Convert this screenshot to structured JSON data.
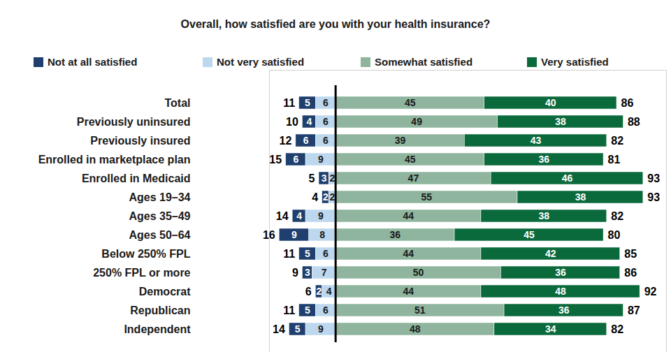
{
  "chart_data": {
    "type": "bar",
    "title": "Overall, how satisfied are you with your health insurance?",
    "orientation": "horizontal",
    "stacked": true,
    "data_labels": true,
    "tick_labels": "y",
    "grid": false,
    "legend": "top",
    "categories": [
      "Total",
      "Previously uninsured",
      "Previously insured",
      "Enrolled in marketplace plan",
      "Enrolled in Medicaid",
      "Ages 19–34",
      "Ages 35–49",
      "Ages 50–64",
      "Below 250% FPL",
      "250% FPL or more",
      "Democrat",
      "Republican",
      "Independent"
    ],
    "series": [
      {
        "name": "Not at all satisfied",
        "color": "#1f3f6e",
        "values": [
          5,
          4,
          6,
          6,
          3,
          2,
          4,
          9,
          5,
          3,
          2,
          5,
          5
        ]
      },
      {
        "name": "Not very satisfied",
        "color": "#bdd8ee",
        "values": [
          6,
          6,
          6,
          9,
          2,
          2,
          9,
          8,
          6,
          7,
          4,
          6,
          9
        ]
      },
      {
        "name": "Somewhat satisfied",
        "color": "#8fb59e",
        "values": [
          45,
          49,
          39,
          45,
          47,
          55,
          44,
          36,
          44,
          50,
          44,
          51,
          48
        ]
      },
      {
        "name": "Very satisfied",
        "color": "#0b6a3c",
        "values": [
          40,
          38,
          43,
          36,
          46,
          38,
          38,
          45,
          42,
          36,
          48,
          36,
          34
        ]
      }
    ],
    "dissatisfied_totals": [
      11,
      10,
      12,
      15,
      5,
      4,
      14,
      16,
      11,
      9,
      6,
      11,
      14
    ],
    "satisfied_totals": [
      86,
      88,
      82,
      81,
      93,
      93,
      82,
      80,
      85,
      86,
      92,
      87,
      82
    ],
    "xlim": [
      -20,
      100
    ],
    "xticks": [
      0
    ]
  }
}
